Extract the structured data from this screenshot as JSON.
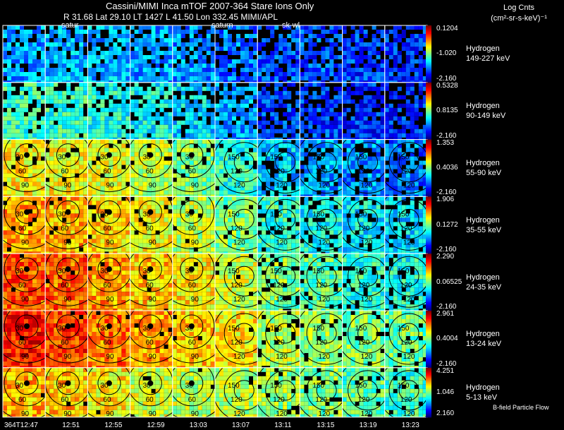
{
  "header": {
    "title": "Cassini/MIMI Inca mTOF  2007-364   Stare    Ions Only",
    "subtitle": "R     31.68 Lat 29.10 LT 1427 L      41.50 Lon        332.45  MIMI/APL",
    "units_line1": "Log Cnts",
    "units_line2": "(cm²-sr-s-keV)⁻¹"
  },
  "overlay_labels": [
    "satur",
    "saturn",
    "sk-wl"
  ],
  "footnote": "B-field Particle Flow",
  "chart_data": {
    "type": "heatmap",
    "time_labels": [
      "364T12:47",
      "12:51",
      "12:55",
      "12:59",
      "13:03",
      "13:07",
      "13:11",
      "13:15",
      "13:19",
      "13:23"
    ],
    "contour_labels": [
      "30",
      "60",
      "90",
      "120",
      "150"
    ],
    "bands": [
      {
        "species": "Hydrogen",
        "energy": "149-227 keV",
        "colorbar_ticks": [
          "0.1204",
          "-1.020",
          "-2.160"
        ]
      },
      {
        "species": "Hydrogen",
        "energy": "90-149 keV",
        "colorbar_ticks": [
          "0.5328",
          "0.8135",
          "-2.160"
        ]
      },
      {
        "species": "Hydrogen",
        "energy": "55-90 keV",
        "colorbar_ticks": [
          "1.353",
          "0.4036",
          "-2.160"
        ]
      },
      {
        "species": "Hydrogen",
        "energy": "35-55 keV",
        "colorbar_ticks": [
          "1.906",
          "0.1272",
          "-2.160"
        ]
      },
      {
        "species": "Hydrogen",
        "energy": "24-35 keV",
        "colorbar_ticks": [
          "2.290",
          "0.06525",
          "-2.160"
        ]
      },
      {
        "species": "Hydrogen",
        "energy": "13-24 keV",
        "colorbar_ticks": [
          "2.961",
          "0.4004",
          "-2.160"
        ]
      },
      {
        "species": "Hydrogen",
        "energy": "5-13 keV",
        "colorbar_ticks": [
          "4.251",
          "1.046",
          "2.160"
        ]
      }
    ],
    "mean_intensity": [
      [
        0.28,
        0.3,
        0.3,
        0.28,
        0.26,
        0.24,
        0.2,
        0.2,
        0.18,
        0.16
      ],
      [
        0.42,
        0.42,
        0.4,
        0.38,
        0.34,
        0.28,
        0.18,
        0.18,
        0.16,
        0.16
      ],
      [
        0.64,
        0.62,
        0.6,
        0.56,
        0.5,
        0.42,
        0.32,
        0.28,
        0.26,
        0.24
      ],
      [
        0.72,
        0.7,
        0.66,
        0.62,
        0.56,
        0.5,
        0.42,
        0.38,
        0.36,
        0.34
      ],
      [
        0.8,
        0.78,
        0.72,
        0.68,
        0.64,
        0.58,
        0.5,
        0.46,
        0.42,
        0.4
      ],
      [
        0.86,
        0.82,
        0.76,
        0.72,
        0.68,
        0.64,
        0.56,
        0.52,
        0.5,
        0.48
      ],
      [
        0.7,
        0.68,
        0.64,
        0.58,
        0.56,
        0.56,
        0.52,
        0.5,
        0.46,
        0.44
      ]
    ]
  }
}
